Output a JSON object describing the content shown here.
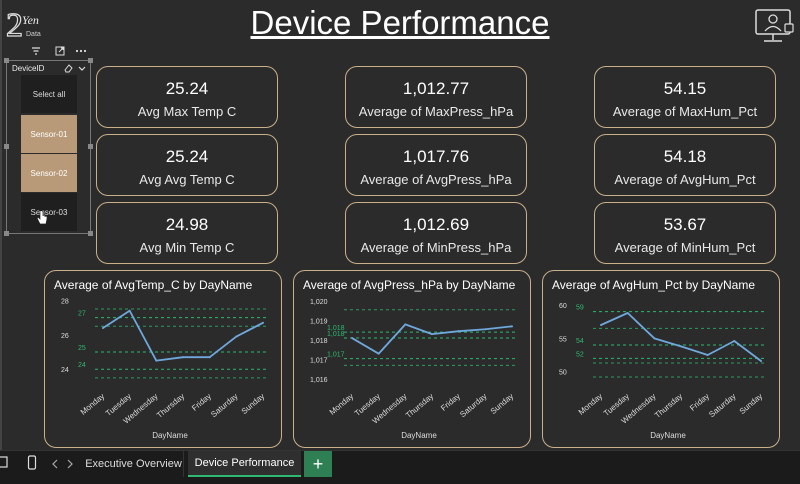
{
  "header": {
    "title": "Device Performance",
    "logo_text": "Yen",
    "logo_sub": "Data"
  },
  "slicer": {
    "title": "DeviceID",
    "items": [
      {
        "label": "Select all",
        "selected": false
      },
      {
        "label": "Sensor-01",
        "selected": true
      },
      {
        "label": "Sensor-02",
        "selected": true
      },
      {
        "label": "Sensor-03",
        "selected": false
      }
    ]
  },
  "kpis": [
    {
      "value": "25.24",
      "label": "Avg Max Temp C"
    },
    {
      "value": "1,012.77",
      "label": "Average of MaxPress_hPa"
    },
    {
      "value": "54.15",
      "label": "Average of MaxHum_Pct"
    },
    {
      "value": "25.24",
      "label": "Avg Avg Temp C"
    },
    {
      "value": "1,017.76",
      "label": "Average of AvgPress_hPa"
    },
    {
      "value": "54.18",
      "label": "Average of AvgHum_Pct"
    },
    {
      "value": "24.98",
      "label": "Avg Min Temp C"
    },
    {
      "value": "1,012.69",
      "label": "Average of MinPress_hPa"
    },
    {
      "value": "53.67",
      "label": "Average of MinHum_Pct"
    }
  ],
  "chart_data": [
    {
      "type": "line",
      "title": "Average of AvgTemp_C by DayName",
      "xlabel": "DayName",
      "ylabel": "",
      "categories": [
        "Monday",
        "Tuesday",
        "Wednesday",
        "Thursday",
        "Friday",
        "Saturday",
        "Sunday"
      ],
      "values": [
        26.4,
        27.4,
        24.5,
        24.7,
        24.7,
        25.9,
        26.7
      ],
      "ylim": [
        23.2,
        28.2
      ],
      "yticks": [
        {
          "v": 24,
          "label": "24"
        },
        {
          "v": 26,
          "label": "26"
        },
        {
          "v": 28,
          "label": "28"
        }
      ],
      "reference_lines": [
        {
          "v": 27,
          "label": "27"
        },
        {
          "v": 25,
          "label": "25"
        },
        {
          "v": 24,
          "label": "24"
        }
      ],
      "extra_gridlines": [
        27.5,
        26.5,
        23.5
      ],
      "color": "#6fa8dc",
      "ref_color": "#2eb872"
    },
    {
      "type": "line",
      "title": "Average of AvgPress_hPa by DayName",
      "xlabel": "DayName",
      "ylabel": "",
      "categories": [
        "Monday",
        "Tuesday",
        "Wednesday",
        "Thursday",
        "Friday",
        "Saturday",
        "Sunday"
      ],
      "values": [
        1018.1,
        1017.3,
        1018.8,
        1018.3,
        1018.45,
        1018.55,
        1018.7
      ],
      "ylim": [
        1015.8,
        1020.2
      ],
      "yticks": [
        {
          "v": 1016,
          "label": "1,016"
        },
        {
          "v": 1017,
          "label": "1,017"
        },
        {
          "v": 1018,
          "label": "1,018"
        },
        {
          "v": 1019,
          "label": "1,019"
        },
        {
          "v": 1020,
          "label": "1,020"
        }
      ],
      "reference_lines": [
        {
          "v": 1018.4,
          "label": "1,018"
        },
        {
          "v": 1018.1,
          "label": "1,018"
        },
        {
          "v": 1017.05,
          "label": "1,017"
        }
      ],
      "extra_gridlines": [
        1019.55,
        1016.7
      ],
      "color": "#6fa8dc",
      "ref_color": "#2eb872"
    },
    {
      "type": "line",
      "title": "Average of AvgHum_Pct by DayName",
      "xlabel": "DayName",
      "ylabel": "",
      "categories": [
        "Monday",
        "Tuesday",
        "Wednesday",
        "Thursday",
        "Friday",
        "Saturday",
        "Sunday"
      ],
      "values": [
        57,
        58.8,
        55,
        53.8,
        52.5,
        54.6,
        51.6
      ],
      "ylim": [
        48.3,
        61.2
      ],
      "yticks": [
        {
          "v": 50,
          "label": "50"
        },
        {
          "v": 55,
          "label": "55"
        },
        {
          "v": 60,
          "label": "60"
        }
      ],
      "reference_lines": [
        {
          "v": 59,
          "label": "59"
        },
        {
          "v": 54,
          "label": "54"
        },
        {
          "v": 52,
          "label": "52"
        }
      ],
      "extra_gridlines": [
        56.5,
        51.3,
        49.2
      ],
      "color": "#6fa8dc",
      "ref_color": "#2eb872"
    }
  ],
  "tabs": [
    {
      "label": "Executive Overview",
      "active": false
    },
    {
      "label": "Device Performance",
      "active": true
    }
  ],
  "tab_add_label": "+"
}
